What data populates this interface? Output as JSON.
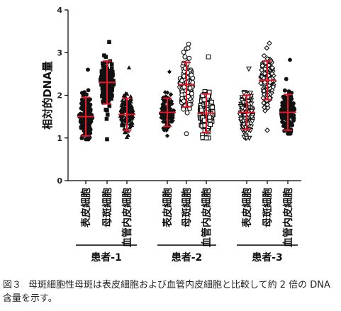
{
  "chart_data": {
    "type": "scatter",
    "ylabel": "相対的DNA量",
    "ylim": [
      0,
      4
    ],
    "yticks": [
      0,
      1,
      2,
      3,
      4
    ],
    "grid": false,
    "legend": "none",
    "error_color": "#e8182b",
    "groups": [
      {
        "name": "患者-1",
        "columns": [
          {
            "label": "表皮細胞",
            "marker": "circle",
            "mean": 1.5,
            "sd": 0.45,
            "range": [
              0.97,
              2.6
            ]
          },
          {
            "label": "母斑細胞",
            "marker": "square",
            "mean": 2.3,
            "sd": 0.5,
            "range": [
              0.97,
              3.25
            ]
          },
          {
            "label": "血管内皮細胞",
            "marker": "triangle-up",
            "mean": 1.55,
            "sd": 0.38,
            "range": [
              1.02,
              2.65
            ]
          }
        ]
      },
      {
        "name": "患者-2",
        "columns": [
          {
            "label": "表皮細胞",
            "marker": "diamond",
            "mean": 1.6,
            "sd": 0.33,
            "range": [
              1.05,
              2.55
            ]
          },
          {
            "label": "母斑細胞",
            "marker": "circle-open",
            "mean": 2.25,
            "sd": 0.52,
            "range": [
              1.1,
              3.2
            ]
          },
          {
            "label": "血管内皮細胞",
            "marker": "square-open",
            "mean": 1.58,
            "sd": 0.45,
            "range": [
              1.0,
              2.9
            ]
          }
        ]
      },
      {
        "name": "患者-3",
        "columns": [
          {
            "label": "表皮細胞",
            "marker": "triangle-down-open",
            "mean": 1.6,
            "sd": 0.4,
            "range": [
              1.0,
              2.62
            ]
          },
          {
            "label": "母斑細胞",
            "marker": "diamond-open",
            "mean": 2.35,
            "sd": 0.45,
            "range": [
              1.18,
              3.22
            ]
          },
          {
            "label": "血管内皮細胞",
            "marker": "circle",
            "mean": 1.6,
            "sd": 0.42,
            "range": [
              1.1,
              2.83
            ]
          }
        ]
      }
    ]
  },
  "caption": {
    "number": "図３",
    "text": "母斑細胞性母斑は表皮細胞および血管内皮細胞と比較して約 2 倍の DNA 含量を示す。"
  }
}
